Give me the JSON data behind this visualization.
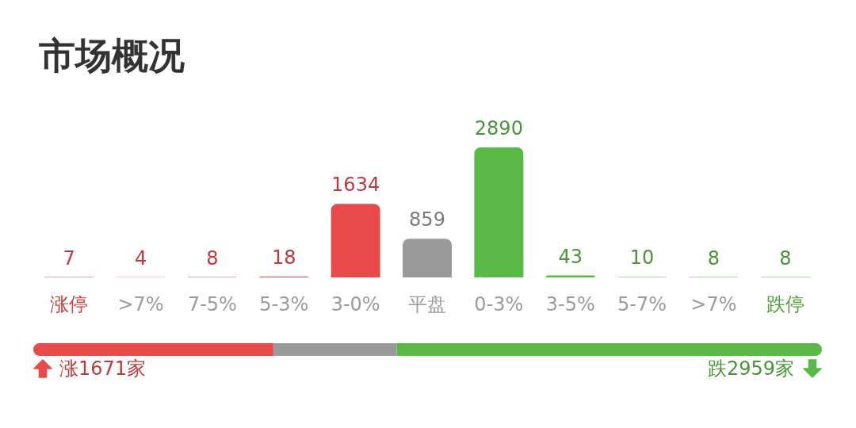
{
  "chart_data": [
    {
      "type": "bar",
      "title": "市场概况",
      "categories": [
        "涨停",
        ">7%",
        "7-5%",
        "5-3%",
        "3-0%",
        "平盘",
        "0-3%",
        "3-5%",
        "5-7%",
        ">7%",
        "跌停"
      ],
      "values": [
        7,
        4,
        8,
        18,
        1634,
        859,
        2890,
        43,
        10,
        8,
        8
      ],
      "colors": [
        "#e84a4a",
        "#e84a4a",
        "#e84a4a",
        "#e84a4a",
        "#e84a4a",
        "#9a9a9a",
        "#5ab946",
        "#5ab946",
        "#5ab946",
        "#5ab946",
        "#5ab946"
      ],
      "data_labels": true,
      "tick_labels": "x"
    },
    {
      "type": "bar",
      "orientation": "horizontal",
      "stacked": true,
      "categories": [
        null
      ],
      "series": [
        {
          "color": "#e84a4a",
          "values": [
            1671
          ],
          "value_labels": [
            "涨1671家"
          ]
        },
        {
          "color": "#9a9a9a",
          "values": [
            859
          ]
        },
        {
          "color": "#5ab946",
          "values": [
            2959
          ],
          "value_labels": [
            "跌2959家"
          ]
        }
      ],
      "tick_labels": false
    }
  ]
}
